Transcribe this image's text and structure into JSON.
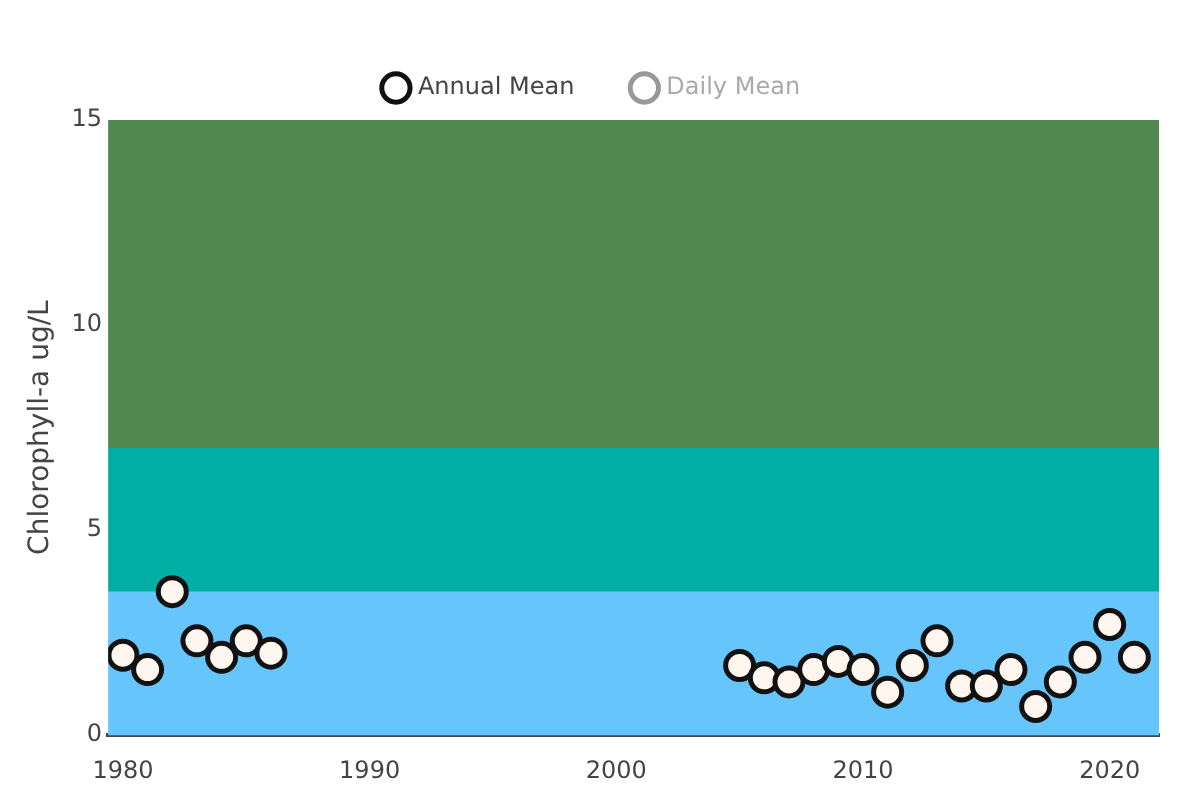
{
  "chart_data": {
    "type": "scatter",
    "ylabel": "Chlorophyll-a ug/L",
    "xlim": [
      1979.4,
      2022
    ],
    "xticks": [
      1980,
      1990,
      2000,
      2010,
      2020
    ],
    "ylim": [
      0,
      15
    ],
    "yticks": [
      0,
      5,
      10,
      15
    ],
    "grid": false,
    "legend": "top",
    "marker": "circle",
    "bands": [
      {
        "axis": "y",
        "from": 0,
        "to": 3.5,
        "color": "#66c5fb"
      },
      {
        "axis": "y",
        "from": 3.5,
        "to": 7,
        "color": "#00aea4"
      },
      {
        "axis": "y",
        "from": 7,
        "to": 15,
        "color": "#508850"
      }
    ],
    "series": [
      {
        "name": "Annual Mean",
        "color": "#111111",
        "x": [
          1980,
          1981,
          1982,
          1983,
          1984,
          1985,
          1986,
          2005,
          2006,
          2007,
          2008,
          2009,
          2010,
          2011,
          2012,
          2013,
          2014,
          2015,
          2016,
          2017,
          2018,
          2019,
          2020,
          2021
        ],
        "values": [
          1.95,
          1.6,
          3.5,
          2.3,
          1.9,
          2.3,
          2.0,
          1.7,
          1.4,
          1.3,
          1.6,
          1.8,
          1.6,
          1.05,
          1.7,
          2.3,
          1.2,
          1.2,
          1.6,
          0.7,
          1.3,
          1.9,
          2.7,
          1.9
        ]
      },
      {
        "name": "Daily Mean",
        "color": "#999999"
      }
    ]
  }
}
